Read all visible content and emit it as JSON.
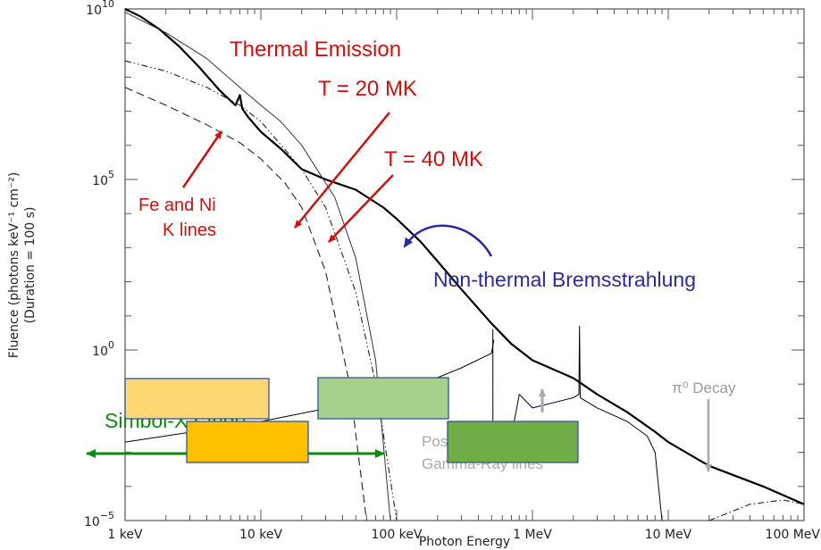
{
  "chart_data": {
    "type": "line",
    "xlabel": "Photon Energy",
    "ylabel": "Fluence (photons keV⁻¹ cm⁻²)",
    "ylabel2": "(Duration = 100 s)",
    "x_scale": "log",
    "y_scale": "log",
    "xlim_keV": [
      1,
      100000
    ],
    "ylim": [
      1e-05,
      10000000000.0
    ],
    "x_ticks": [
      {
        "value_keV": 1,
        "label": "1 keV"
      },
      {
        "value_keV": 10,
        "label": "10 keV"
      },
      {
        "value_keV": 100,
        "label": "100 keV"
      },
      {
        "value_keV": 1000,
        "label": "1 MeV"
      },
      {
        "value_keV": 10000,
        "label": "10 MeV"
      },
      {
        "value_keV": 100000,
        "label": "100 MeV"
      }
    ],
    "y_ticks": [
      {
        "value": 10000000000.0,
        "base": "10",
        "exp": "10"
      },
      {
        "value": 100000.0,
        "base": "10",
        "exp": "5"
      },
      {
        "value": 1,
        "base": "10",
        "exp": "0"
      },
      {
        "value": 1e-05,
        "base": "10",
        "exp": "−5"
      }
    ],
    "grid": false,
    "series": [
      {
        "style": "solid-thick",
        "x": [
          1,
          1.3,
          1.8,
          2.5,
          3.5,
          5,
          6.5,
          7,
          7.3,
          8,
          10,
          14,
          20,
          30,
          50,
          80,
          100,
          150,
          200,
          300,
          500,
          700,
          1000,
          2000,
          3000,
          5000,
          8000,
          10000,
          20000,
          50000,
          100000
        ],
        "y": [
          10000000000.0,
          6000000000.0,
          2500000000.0,
          800000000.0,
          200000000.0,
          40000000.0,
          15000000.0,
          30000000.0,
          12000000.0,
          7000000.0,
          2500000.0,
          800000.0,
          200000.0,
          100000.0,
          50000.0,
          15000.0,
          7000.0,
          1500.0,
          400,
          60,
          6,
          1.5,
          0.5,
          0.15,
          0.05,
          0.015,
          0.004,
          0.002,
          0.0004,
          0.0001,
          3e-05
        ]
      },
      {
        "style": "dash-dot-dot",
        "x": [
          1,
          2,
          4,
          7,
          10,
          20,
          30,
          50,
          70,
          100
        ],
        "y": [
          300000000.0,
          150000000.0,
          50000000.0,
          15000000.0,
          5000000.0,
          200000.0,
          15000.0,
          50,
          0.1,
          1e-05
        ]
      },
      {
        "style": "long-dash",
        "x": [
          1,
          2,
          4,
          7,
          10,
          15,
          20,
          30,
          45,
          60
        ],
        "y": [
          50000000.0,
          15000000.0,
          4000000.0,
          1200000.0,
          400000.0,
          80000.0,
          15000.0,
          200,
          0.1,
          1e-05
        ]
      },
      {
        "style": "thin-solid",
        "x": [
          1,
          2,
          4,
          7,
          10,
          14,
          20,
          35,
          50,
          70,
          90
        ],
        "y": [
          8000000000.0,
          2000000000.0,
          350000000.0,
          50000000.0,
          15000000.0,
          5000000.0,
          1000000.0,
          30000.0,
          500,
          0.5,
          1e-05
        ]
      },
      {
        "style": "thin-continuum",
        "x": [
          1,
          10,
          100,
          300,
          500,
          520
        ],
        "y": [
          0.002,
          0.008,
          0.05,
          0.3,
          0.8,
          2
        ]
      },
      {
        "style": "gamma-lines",
        "x": [
          510,
          511,
          512,
          530,
          700,
          800,
          1000,
          1500,
          2000,
          2200,
          2223,
          2250,
          3000,
          5000,
          7000,
          8000,
          9000
        ],
        "y": [
          0.8,
          4,
          0.001,
          0.002,
          0.003,
          0.05,
          0.02,
          0.03,
          0.04,
          0.05,
          5,
          0.04,
          0.02,
          0.008,
          0.003,
          0.001,
          1e-05
        ]
      },
      {
        "style": "dash-dot",
        "x": [
          20000,
          40000,
          70000,
          100000
        ],
        "y": [
          1e-05,
          3e-05,
          4e-05,
          3e-05
        ]
      }
    ],
    "annotations": [
      {
        "text": "Thermal Emission",
        "color": "#cc1111"
      },
      {
        "text": "T = 20 MK",
        "color": "#cc1111"
      },
      {
        "text": "T = 40 MK",
        "color": "#cc1111"
      },
      {
        "text": "Fe and Ni",
        "color": "#cc1111"
      },
      {
        "text": "K lines",
        "color": "#cc1111"
      },
      {
        "text": "Non-thermal Bremsstrahlung",
        "color": "#2a2a9a"
      },
      {
        "text": "π⁰ Decay",
        "color": "#9a9a9a"
      },
      {
        "text": "Simbol-X range",
        "color": "#118811"
      },
      {
        "text": "Positron & Nuclear",
        "color": "#aaaaaa"
      },
      {
        "text": "Gamma-Ray lines",
        "color": "#aaaaaa"
      }
    ]
  }
}
